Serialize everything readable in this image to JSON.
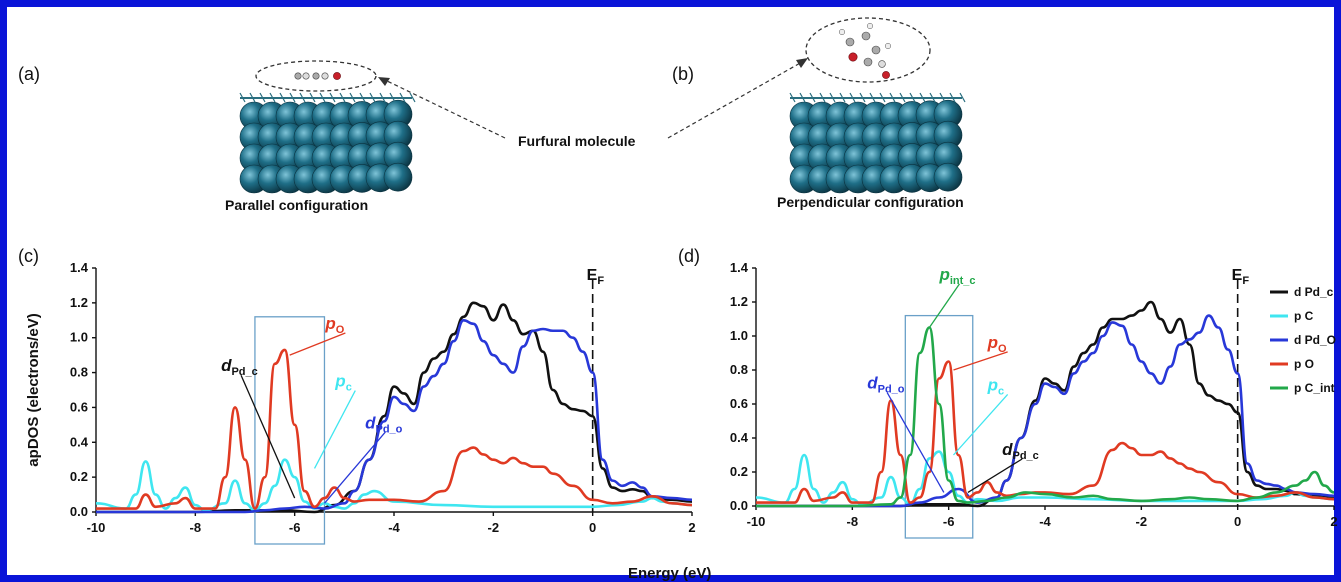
{
  "panels": {
    "a": {
      "label": "(a)",
      "caption": "Parallel configuration"
    },
    "b": {
      "label": "(b)",
      "caption": "Perpendicular configuration"
    },
    "c": {
      "label": "(c)"
    },
    "d": {
      "label": "(d)"
    }
  },
  "molecule_label": "Furfural molecule",
  "shared_xlabel": "Energy (eV)",
  "colors": {
    "black": "#111111",
    "cyan": "#3fe6f0",
    "blue": "#2838d8",
    "red": "#e03a22",
    "green": "#22a84a",
    "frame": "#0a14d8",
    "box": "#6aa0c8"
  },
  "chart_data": [
    {
      "type": "line",
      "panel": "c",
      "xlabel": "Energy (eV)",
      "ylabel": "apDOS (electrons/eV)",
      "xlim": [
        -10,
        2
      ],
      "ylim": [
        0,
        1.4
      ],
      "xticks": [
        "-10",
        "-8",
        "-6",
        "-4",
        "-2",
        "0",
        "2"
      ],
      "yticks": [
        "0.0",
        "0.2",
        "0.4",
        "0.6",
        "0.8",
        "1.0",
        "1.2",
        "1.4"
      ],
      "fermi_label": "E",
      "fermi_sub": "F",
      "fermi_x": 0,
      "highlight_box": {
        "x": [
          -6.8,
          -5.4
        ],
        "y": [
          0,
          1.12
        ]
      },
      "annotations": [
        {
          "main": "d",
          "sub": "Pd_c",
          "color": "#111111"
        },
        {
          "main": "p",
          "sub": "O",
          "color": "#e03a22"
        },
        {
          "main": "p",
          "sub": "c",
          "color": "#3fe6f0"
        },
        {
          "main": "d",
          "sub": "Pd_o",
          "color": "#2838d8"
        }
      ],
      "series": [
        {
          "key": "dPdc",
          "color": "#111111",
          "x": [
            -10,
            -9,
            -8,
            -7.2,
            -6.6,
            -6.2,
            -5.6,
            -5.2,
            -4.8,
            -4.5,
            -4.2,
            -4.0,
            -3.8,
            -3.6,
            -3.4,
            -3.2,
            -3.0,
            -2.8,
            -2.6,
            -2.4,
            -2.2,
            -2.0,
            -1.8,
            -1.6,
            -1.4,
            -1.2,
            -1.0,
            -0.8,
            -0.6,
            -0.4,
            -0.2,
            0.0,
            0.2,
            0.4,
            0.6,
            0.8,
            1.0,
            1.2,
            1.6,
            2.0
          ],
          "y": [
            0.0,
            0.0,
            0.0,
            0.01,
            0.01,
            0.01,
            0.0,
            0.04,
            0.12,
            0.3,
            0.55,
            0.72,
            0.68,
            0.62,
            0.8,
            0.88,
            0.92,
            1.02,
            1.12,
            1.2,
            1.18,
            1.1,
            1.19,
            1.1,
            1.02,
            1.04,
            0.92,
            0.7,
            0.62,
            0.59,
            0.58,
            0.55,
            0.25,
            0.14,
            0.12,
            0.13,
            0.12,
            0.08,
            0.07,
            0.06
          ]
        },
        {
          "key": "pC",
          "color": "#3fe6f0",
          "x": [
            -10,
            -9.4,
            -9.2,
            -9.0,
            -8.8,
            -8.6,
            -8.4,
            -8.2,
            -8.0,
            -7.8,
            -7.4,
            -7.2,
            -7.0,
            -6.8,
            -6.6,
            -6.4,
            -6.2,
            -6.0,
            -5.8,
            -5.6,
            -5.4,
            -5.2,
            -5.0,
            -4.8,
            -4.6,
            -4.4,
            -4.0,
            -3.0,
            -2.0,
            -1.0,
            0.0,
            0.5,
            1.0,
            1.2,
            1.4,
            1.6,
            2.0
          ],
          "y": [
            0.05,
            0.02,
            0.1,
            0.29,
            0.1,
            0.02,
            0.08,
            0.14,
            0.04,
            0.01,
            0.05,
            0.18,
            0.05,
            0.01,
            0.05,
            0.15,
            0.3,
            0.2,
            0.06,
            0.02,
            0.05,
            0.03,
            0.02,
            0.05,
            0.1,
            0.12,
            0.06,
            0.04,
            0.03,
            0.03,
            0.03,
            0.04,
            0.06,
            0.08,
            0.06,
            0.05,
            0.04
          ]
        },
        {
          "key": "dPdO",
          "color": "#2838d8",
          "x": [
            -10,
            -8,
            -7,
            -6.6,
            -6.2,
            -5.8,
            -5.4,
            -5.0,
            -4.8,
            -4.5,
            -4.2,
            -4.0,
            -3.8,
            -3.6,
            -3.4,
            -3.2,
            -3.0,
            -2.8,
            -2.6,
            -2.4,
            -2.2,
            -2.0,
            -1.8,
            -1.6,
            -1.4,
            -1.2,
            -1.0,
            -0.8,
            -0.6,
            -0.4,
            -0.2,
            0.0,
            0.2,
            0.4,
            0.6,
            0.8,
            1.0,
            1.2,
            1.6,
            2.0
          ],
          "y": [
            0.0,
            0.0,
            0.0,
            0.01,
            0.02,
            0.03,
            0.02,
            0.05,
            0.12,
            0.3,
            0.52,
            0.66,
            0.62,
            0.58,
            0.72,
            0.78,
            0.85,
            0.98,
            1.1,
            1.08,
            0.98,
            0.9,
            0.85,
            0.8,
            0.95,
            1.04,
            1.05,
            1.04,
            1.04,
            1.0,
            0.92,
            0.8,
            0.3,
            0.18,
            0.15,
            0.17,
            0.14,
            0.09,
            0.08,
            0.07
          ]
        },
        {
          "key": "pO",
          "color": "#e03a22",
          "x": [
            -10,
            -9.2,
            -9.0,
            -8.8,
            -8.4,
            -8.2,
            -8.0,
            -7.6,
            -7.4,
            -7.2,
            -7.0,
            -6.8,
            -6.6,
            -6.4,
            -6.2,
            -6.0,
            -5.8,
            -5.6,
            -5.4,
            -5.2,
            -5.0,
            -4.8,
            -4.5,
            -4.2,
            -4.0,
            -3.5,
            -3.0,
            -2.6,
            -2.4,
            -2.2,
            -2.0,
            -1.8,
            -1.6,
            -1.4,
            -1.2,
            -1.0,
            -0.8,
            -0.4,
            0.0,
            0.4,
            0.8,
            1.2,
            1.6,
            2.0
          ],
          "y": [
            0.02,
            0.02,
            0.1,
            0.03,
            0.05,
            0.08,
            0.02,
            0.02,
            0.2,
            0.6,
            0.3,
            0.02,
            0.2,
            0.85,
            0.93,
            0.5,
            0.12,
            0.03,
            0.08,
            0.14,
            0.08,
            0.06,
            0.07,
            0.07,
            0.07,
            0.06,
            0.12,
            0.35,
            0.37,
            0.33,
            0.3,
            0.28,
            0.31,
            0.28,
            0.26,
            0.26,
            0.22,
            0.15,
            0.07,
            0.05,
            0.06,
            0.09,
            0.05,
            0.04
          ]
        }
      ]
    },
    {
      "type": "line",
      "panel": "d",
      "xlim": [
        -10,
        2
      ],
      "ylim": [
        0,
        1.4
      ],
      "xticks": [
        "-10",
        "-8",
        "-6",
        "-4",
        "-2",
        "0",
        "2"
      ],
      "yticks": [
        "0.0",
        "0.2",
        "0.4",
        "0.6",
        "0.8",
        "1.0",
        "1.2",
        "1.4"
      ],
      "fermi_label": "E",
      "fermi_sub": "F",
      "fermi_x": 0,
      "highlight_box": {
        "x": [
          -6.9,
          -5.5
        ],
        "y": [
          0,
          1.12
        ]
      },
      "annotations": [
        {
          "main": "p",
          "sub": "int_c",
          "color": "#22a84a"
        },
        {
          "main": "p",
          "sub": "O",
          "color": "#e03a22"
        },
        {
          "main": "d",
          "sub": "Pd_o",
          "color": "#2838d8"
        },
        {
          "main": "p",
          "sub": "c",
          "color": "#3fe6f0"
        },
        {
          "main": "d",
          "sub": "Pd_c",
          "color": "#111111"
        }
      ],
      "legend": [
        {
          "name": "d Pd_c",
          "color": "#111111"
        },
        {
          "name": "p C",
          "color": "#3fe6f0"
        },
        {
          "name": "d Pd_O",
          "color": "#2838d8"
        },
        {
          "name": "p O",
          "color": "#e03a22"
        },
        {
          "name": "p C_int",
          "color": "#22a84a"
        }
      ],
      "series": [
        {
          "key": "dPdc",
          "color": "#111111",
          "x": [
            -10,
            -8,
            -7,
            -6.6,
            -6.2,
            -5.8,
            -5.4,
            -5.0,
            -4.8,
            -4.5,
            -4.2,
            -4.0,
            -3.8,
            -3.6,
            -3.4,
            -3.2,
            -3.0,
            -2.8,
            -2.6,
            -2.4,
            -2.2,
            -2.0,
            -1.8,
            -1.6,
            -1.4,
            -1.2,
            -1.0,
            -0.8,
            -0.6,
            -0.4,
            -0.2,
            0.0,
            0.2,
            0.4,
            0.6,
            0.8,
            1.0,
            1.2,
            1.6,
            2.0
          ],
          "y": [
            0.0,
            0.0,
            0.0,
            0.01,
            0.01,
            0.01,
            0.0,
            0.05,
            0.15,
            0.4,
            0.62,
            0.75,
            0.72,
            0.68,
            0.82,
            0.9,
            0.95,
            1.05,
            1.1,
            1.1,
            1.12,
            1.15,
            1.2,
            1.1,
            1.02,
            1.1,
            0.95,
            0.72,
            0.65,
            0.62,
            0.6,
            0.55,
            0.2,
            0.12,
            0.1,
            0.1,
            0.09,
            0.07,
            0.06,
            0.05
          ]
        },
        {
          "key": "pC",
          "color": "#3fe6f0",
          "x": [
            -10,
            -9.4,
            -9.2,
            -9.0,
            -8.8,
            -8.6,
            -8.4,
            -8.2,
            -8.0,
            -7.8,
            -7.4,
            -7.2,
            -7.0,
            -6.8,
            -6.6,
            -6.4,
            -6.2,
            -6.0,
            -5.8,
            -5.6,
            -5.4,
            -5.0,
            -4.5,
            -4.0,
            -3.0,
            -2.0,
            -1.0,
            0.0,
            0.5,
            1.0,
            1.2,
            1.4,
            1.6,
            2.0
          ],
          "y": [
            0.05,
            0.02,
            0.1,
            0.3,
            0.1,
            0.02,
            0.08,
            0.14,
            0.04,
            0.01,
            0.05,
            0.17,
            0.05,
            0.01,
            0.1,
            0.28,
            0.32,
            0.2,
            0.06,
            0.02,
            0.04,
            0.03,
            0.05,
            0.05,
            0.04,
            0.03,
            0.03,
            0.03,
            0.04,
            0.06,
            0.08,
            0.06,
            0.05,
            0.04
          ]
        },
        {
          "key": "dPdO",
          "color": "#2838d8",
          "x": [
            -10,
            -8,
            -7,
            -6.6,
            -6.2,
            -5.8,
            -5.4,
            -5.0,
            -4.8,
            -4.5,
            -4.2,
            -4.0,
            -3.8,
            -3.6,
            -3.4,
            -3.2,
            -3.0,
            -2.8,
            -2.6,
            -2.4,
            -2.2,
            -2.0,
            -1.8,
            -1.6,
            -1.4,
            -1.2,
            -1.0,
            -0.8,
            -0.6,
            -0.4,
            -0.2,
            0.0,
            0.2,
            0.4,
            0.6,
            0.8,
            1.0,
            1.2,
            1.6,
            2.0
          ],
          "y": [
            0.0,
            0.0,
            0.0,
            0.02,
            0.05,
            0.1,
            0.02,
            0.05,
            0.15,
            0.4,
            0.6,
            0.72,
            0.7,
            0.66,
            0.78,
            0.85,
            0.9,
            1.0,
            1.08,
            1.06,
            0.95,
            0.85,
            0.78,
            0.72,
            0.82,
            0.95,
            0.98,
            1.02,
            1.12,
            1.05,
            0.92,
            0.78,
            0.25,
            0.15,
            0.13,
            0.12,
            0.1,
            0.08,
            0.07,
            0.06
          ]
        },
        {
          "key": "pO",
          "color": "#e03a22",
          "x": [
            -10,
            -9.2,
            -9.0,
            -8.8,
            -8.4,
            -8.2,
            -8.0,
            -7.6,
            -7.4,
            -7.2,
            -7.0,
            -6.8,
            -6.6,
            -6.4,
            -6.2,
            -6.0,
            -5.8,
            -5.6,
            -5.4,
            -5.2,
            -5.0,
            -4.8,
            -4.5,
            -4.2,
            -4.0,
            -3.5,
            -3.0,
            -2.6,
            -2.4,
            -2.2,
            -2.0,
            -1.8,
            -1.6,
            -1.4,
            -1.2,
            -1.0,
            -0.8,
            -0.4,
            0.0,
            0.4,
            0.8,
            1.2,
            1.6,
            2.0
          ],
          "y": [
            0.02,
            0.02,
            0.1,
            0.03,
            0.05,
            0.08,
            0.02,
            0.02,
            0.2,
            0.62,
            0.3,
            0.02,
            0.05,
            0.2,
            0.75,
            0.85,
            0.3,
            0.05,
            0.08,
            0.14,
            0.08,
            0.06,
            0.07,
            0.08,
            0.08,
            0.07,
            0.12,
            0.33,
            0.37,
            0.34,
            0.3,
            0.3,
            0.32,
            0.28,
            0.25,
            0.22,
            0.2,
            0.14,
            0.07,
            0.05,
            0.06,
            0.08,
            0.05,
            0.04
          ]
        },
        {
          "key": "pCint",
          "color": "#22a84a",
          "x": [
            -10,
            -8,
            -7.2,
            -7.0,
            -6.8,
            -6.6,
            -6.4,
            -6.2,
            -6.0,
            -5.8,
            -5.6,
            -5.2,
            -4.8,
            -4.4,
            -4.0,
            -3.4,
            -3.0,
            -2.6,
            -2.0,
            -1.4,
            -1.0,
            -0.6,
            0.0,
            0.4,
            0.8,
            1.2,
            1.4,
            1.6,
            1.8,
            2.0
          ],
          "y": [
            0.0,
            0.0,
            0.01,
            0.05,
            0.3,
            0.9,
            1.05,
            0.6,
            0.15,
            0.03,
            0.02,
            0.03,
            0.05,
            0.08,
            0.07,
            0.05,
            0.06,
            0.04,
            0.03,
            0.04,
            0.05,
            0.04,
            0.03,
            0.05,
            0.08,
            0.12,
            0.15,
            0.2,
            0.12,
            0.08
          ]
        }
      ]
    }
  ]
}
